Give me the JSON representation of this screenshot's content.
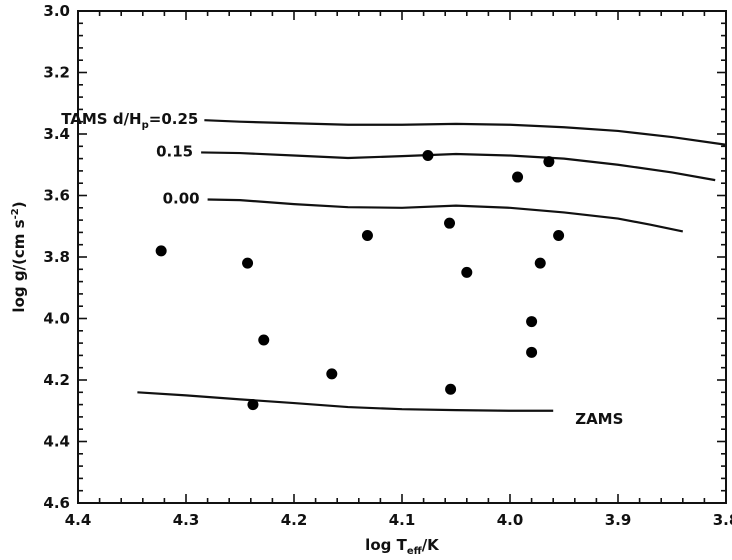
{
  "chart_data": {
    "type": "scatter",
    "x_axis": {
      "range": [
        4.4,
        3.8
      ],
      "reversed": true,
      "major_ticks": [
        4.4,
        4.3,
        4.2,
        4.1,
        4.0,
        3.9,
        3.8
      ],
      "tick_labels": [
        "4.4",
        "4.3",
        "4.2",
        "4.1",
        "4.0",
        "3.9",
        "3.8"
      ],
      "minor_step": 0.02,
      "label": {
        "pre": "log T",
        "sub": "eff",
        "post": "/K"
      }
    },
    "y_axis": {
      "range": [
        3.0,
        4.6
      ],
      "reversed": true,
      "major_ticks": [
        3.0,
        3.2,
        3.4,
        3.6,
        3.8,
        4.0,
        4.2,
        4.4,
        4.6
      ],
      "tick_labels": [
        "3.0",
        "3.2",
        "3.4",
        "3.6",
        "3.8",
        "4.0",
        "4.2",
        "4.4",
        "4.6"
      ],
      "minor_step": 0.04,
      "label": {
        "pre": "log g/(cm s",
        "sup": "-2",
        "post": ")"
      }
    },
    "grid": false,
    "legend": "none",
    "points": [
      {
        "x": 4.323,
        "y": 3.78
      },
      {
        "x": 4.243,
        "y": 3.82
      },
      {
        "x": 4.238,
        "y": 4.28
      },
      {
        "x": 4.228,
        "y": 4.07
      },
      {
        "x": 4.165,
        "y": 4.18
      },
      {
        "x": 4.132,
        "y": 3.73
      },
      {
        "x": 4.076,
        "y": 3.47
      },
      {
        "x": 4.056,
        "y": 3.69
      },
      {
        "x": 4.055,
        "y": 4.23
      },
      {
        "x": 4.04,
        "y": 3.85
      },
      {
        "x": 3.993,
        "y": 3.54
      },
      {
        "x": 3.98,
        "y": 4.01
      },
      {
        "x": 3.98,
        "y": 4.11
      },
      {
        "x": 3.972,
        "y": 3.82
      },
      {
        "x": 3.964,
        "y": 3.49
      },
      {
        "x": 3.955,
        "y": 3.73
      }
    ],
    "curves": [
      {
        "label": {
          "pre": "TAMS d/H",
          "sub": "p",
          "post": "=0.25"
        },
        "points": [
          [
            4.283,
            3.355
          ],
          [
            4.25,
            3.36
          ],
          [
            4.2,
            3.365
          ],
          [
            4.15,
            3.37
          ],
          [
            4.1,
            3.37
          ],
          [
            4.05,
            3.367
          ],
          [
            4.0,
            3.37
          ],
          [
            3.95,
            3.378
          ],
          [
            3.9,
            3.39
          ],
          [
            3.85,
            3.41
          ],
          [
            3.8,
            3.435
          ]
        ]
      },
      {
        "label": {
          "pre": "0.15",
          "sub": "",
          "post": ""
        },
        "points": [
          [
            4.286,
            3.46
          ],
          [
            4.25,
            3.462
          ],
          [
            4.2,
            3.47
          ],
          [
            4.15,
            3.478
          ],
          [
            4.1,
            3.472
          ],
          [
            4.05,
            3.465
          ],
          [
            4.0,
            3.47
          ],
          [
            3.95,
            3.48
          ],
          [
            3.9,
            3.5
          ],
          [
            3.85,
            3.525
          ],
          [
            3.81,
            3.55
          ]
        ]
      },
      {
        "label": {
          "pre": "0.00",
          "sub": "",
          "post": ""
        },
        "points": [
          [
            4.28,
            3.613
          ],
          [
            4.25,
            3.615
          ],
          [
            4.2,
            3.628
          ],
          [
            4.15,
            3.638
          ],
          [
            4.1,
            3.64
          ],
          [
            4.05,
            3.633
          ],
          [
            4.0,
            3.64
          ],
          [
            3.95,
            3.655
          ],
          [
            3.9,
            3.675
          ],
          [
            3.87,
            3.695
          ],
          [
            3.84,
            3.717
          ]
        ]
      },
      {
        "label": {
          "pre": "ZAMS",
          "sub": "",
          "post": ""
        },
        "points": [
          [
            4.345,
            4.24
          ],
          [
            4.3,
            4.25
          ],
          [
            4.25,
            4.263
          ],
          [
            4.2,
            4.275
          ],
          [
            4.15,
            4.288
          ],
          [
            4.1,
            4.295
          ],
          [
            4.05,
            4.298
          ],
          [
            4.0,
            4.3
          ],
          [
            3.96,
            4.3
          ]
        ]
      }
    ]
  }
}
